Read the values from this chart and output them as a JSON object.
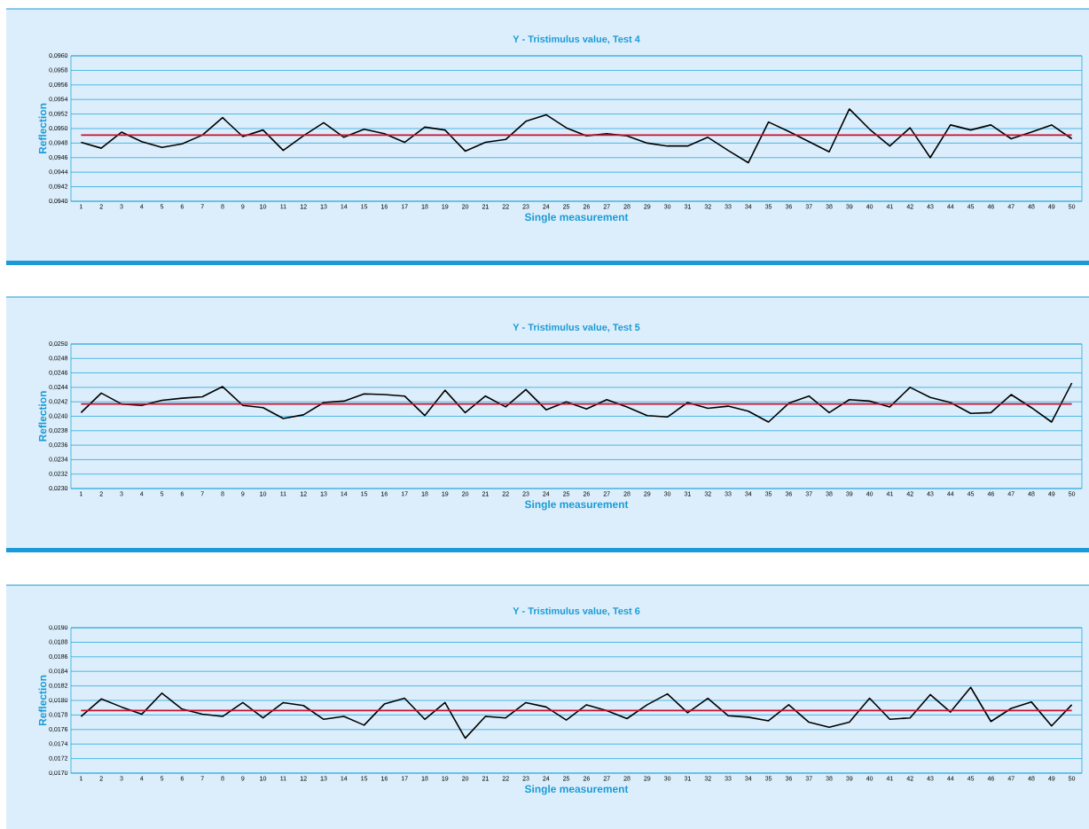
{
  "chart_data": [
    {
      "type": "line",
      "title": "Y - Tristimulus value, Test 4",
      "xlabel": "Single measurement",
      "ylabel": "Reflection",
      "categories": [
        "1",
        "2",
        "3",
        "4",
        "5",
        "6",
        "7",
        "8",
        "9",
        "10",
        "11",
        "12",
        "13",
        "14",
        "15",
        "16",
        "17",
        "18",
        "19",
        "20",
        "21",
        "22",
        "23",
        "24",
        "25",
        "26",
        "27",
        "28",
        "29",
        "30",
        "31",
        "32",
        "33",
        "34",
        "35",
        "36",
        "37",
        "38",
        "39",
        "40",
        "41",
        "42",
        "43",
        "44",
        "45",
        "46",
        "47",
        "48",
        "49",
        "50"
      ],
      "series": [
        {
          "color": "#000000",
          "values": [
            0.09481,
            0.09473,
            0.09495,
            0.09482,
            0.09474,
            0.09479,
            0.09491,
            0.09515,
            0.09489,
            0.09498,
            0.0947,
            0.0949,
            0.09508,
            0.09488,
            0.09499,
            0.09493,
            0.09481,
            0.09502,
            0.09498,
            0.09469,
            0.09481,
            0.09485,
            0.0951,
            0.09519,
            0.09501,
            0.0949,
            0.09493,
            0.0949,
            0.0948,
            0.09476,
            0.09476,
            0.09488,
            0.0947,
            0.09453,
            0.09509,
            0.09496,
            0.09482,
            0.09468,
            0.09527,
            0.09499,
            0.09476,
            0.09501,
            0.0946,
            0.09505,
            0.09498,
            0.09505,
            0.09486,
            0.09495,
            0.09505,
            0.09486
          ]
        }
      ],
      "ylim": [
        0.094,
        0.096
      ],
      "yticks": [
        {
          "value": 0.094,
          "label": "0,0940"
        },
        {
          "value": 0.0942,
          "label": "0,0942"
        },
        {
          "value": 0.0944,
          "label": "0,0944"
        },
        {
          "value": 0.0946,
          "label": "0,0946"
        },
        {
          "value": 0.0948,
          "label": "0,0948"
        },
        {
          "value": 0.095,
          "label": "0,0950"
        },
        {
          "value": 0.0952,
          "label": "0,0952"
        },
        {
          "value": 0.0954,
          "label": "0,0954"
        },
        {
          "value": 0.0956,
          "label": "0,0956"
        },
        {
          "value": 0.0958,
          "label": "0,0958"
        },
        {
          "value": 0.096,
          "label": "0,0960"
        }
      ],
      "ref_lines": [
        {
          "axis": "y",
          "value": 0.09491,
          "color": "#c8102e"
        }
      ],
      "grid": "y"
    },
    {
      "type": "line",
      "title": "Y - Tristimulus value, Test 5",
      "xlabel": "Single measurement",
      "ylabel": "Reflection",
      "categories": [
        "1",
        "2",
        "3",
        "4",
        "5",
        "6",
        "7",
        "8",
        "9",
        "10",
        "11",
        "12",
        "13",
        "14",
        "15",
        "16",
        "17",
        "18",
        "19",
        "20",
        "21",
        "22",
        "23",
        "24",
        "25",
        "26",
        "27",
        "28",
        "29",
        "30",
        "31",
        "32",
        "33",
        "34",
        "35",
        "36",
        "37",
        "38",
        "39",
        "40",
        "41",
        "42",
        "43",
        "44",
        "45",
        "46",
        "47",
        "48",
        "49",
        "50"
      ],
      "series": [
        {
          "color": "#000000",
          "values": [
            0.02405,
            0.02432,
            0.02417,
            0.02415,
            0.02422,
            0.02425,
            0.02427,
            0.02441,
            0.02415,
            0.02412,
            0.02397,
            0.02402,
            0.02419,
            0.02421,
            0.02431,
            0.0243,
            0.02428,
            0.02401,
            0.02436,
            0.02405,
            0.02428,
            0.02413,
            0.02437,
            0.02409,
            0.0242,
            0.0241,
            0.02423,
            0.02413,
            0.02401,
            0.02399,
            0.02419,
            0.02411,
            0.02414,
            0.02407,
            0.02392,
            0.02418,
            0.02428,
            0.02405,
            0.02423,
            0.02421,
            0.02413,
            0.0244,
            0.02426,
            0.02419,
            0.02404,
            0.02405,
            0.0243,
            0.02412,
            0.02392,
            0.02446
          ]
        }
      ],
      "ylim": [
        0.023,
        0.025
      ],
      "yticks": [
        {
          "value": 0.023,
          "label": "0,0230"
        },
        {
          "value": 0.0232,
          "label": "0,0232"
        },
        {
          "value": 0.0234,
          "label": "0,0234"
        },
        {
          "value": 0.0236,
          "label": "0,0236"
        },
        {
          "value": 0.0238,
          "label": "0,0238"
        },
        {
          "value": 0.024,
          "label": "0,0240"
        },
        {
          "value": 0.0242,
          "label": "0,0242"
        },
        {
          "value": 0.0244,
          "label": "0,0244"
        },
        {
          "value": 0.0246,
          "label": "0,0246"
        },
        {
          "value": 0.0248,
          "label": "0,0248"
        },
        {
          "value": 0.025,
          "label": "0,0250"
        }
      ],
      "ref_lines": [
        {
          "axis": "y",
          "value": 0.02417,
          "color": "#c8102e"
        }
      ],
      "grid": "y"
    },
    {
      "type": "line",
      "title": "Y - Tristimulus value, Test 6",
      "xlabel": "Single measurement",
      "ylabel": "Reflection",
      "categories": [
        "1",
        "2",
        "3",
        "4",
        "5",
        "6",
        "7",
        "8",
        "9",
        "10",
        "11",
        "12",
        "13",
        "14",
        "15",
        "16",
        "17",
        "18",
        "19",
        "20",
        "21",
        "22",
        "23",
        "24",
        "25",
        "26",
        "27",
        "28",
        "29",
        "30",
        "31",
        "32",
        "33",
        "34",
        "35",
        "36",
        "37",
        "38",
        "39",
        "40",
        "41",
        "42",
        "43",
        "44",
        "45",
        "46",
        "47",
        "48",
        "49",
        "50"
      ],
      "series": [
        {
          "color": "#000000",
          "values": [
            0.01778,
            0.01802,
            0.01791,
            0.01781,
            0.0181,
            0.01788,
            0.01781,
            0.01778,
            0.01797,
            0.01776,
            0.01797,
            0.01793,
            0.01774,
            0.01778,
            0.01766,
            0.01795,
            0.01803,
            0.01774,
            0.01797,
            0.01748,
            0.01778,
            0.01776,
            0.01797,
            0.01791,
            0.01773,
            0.01794,
            0.01786,
            0.01775,
            0.01794,
            0.01809,
            0.01783,
            0.01803,
            0.01779,
            0.01777,
            0.01772,
            0.01794,
            0.0177,
            0.01763,
            0.0177,
            0.01803,
            0.01774,
            0.01776,
            0.01808,
            0.01784,
            0.01818,
            0.01771,
            0.01789,
            0.01798,
            0.01765,
            0.01794
          ]
        }
      ],
      "ylim": [
        0.017,
        0.019
      ],
      "yticks": [
        {
          "value": 0.017,
          "label": "0,0170"
        },
        {
          "value": 0.0172,
          "label": "0,0172"
        },
        {
          "value": 0.0174,
          "label": "0,0174"
        },
        {
          "value": 0.0176,
          "label": "0,0176"
        },
        {
          "value": 0.0178,
          "label": "0,0178"
        },
        {
          "value": 0.018,
          "label": "0,0180"
        },
        {
          "value": 0.0182,
          "label": "0,0182"
        },
        {
          "value": 0.0184,
          "label": "0,0184"
        },
        {
          "value": 0.0186,
          "label": "0,0186"
        },
        {
          "value": 0.0188,
          "label": "0,0188"
        },
        {
          "value": 0.019,
          "label": "0,0190"
        }
      ],
      "ref_lines": [
        {
          "axis": "y",
          "value": 0.01786,
          "color": "#c8102e"
        }
      ],
      "grid": "y"
    }
  ]
}
